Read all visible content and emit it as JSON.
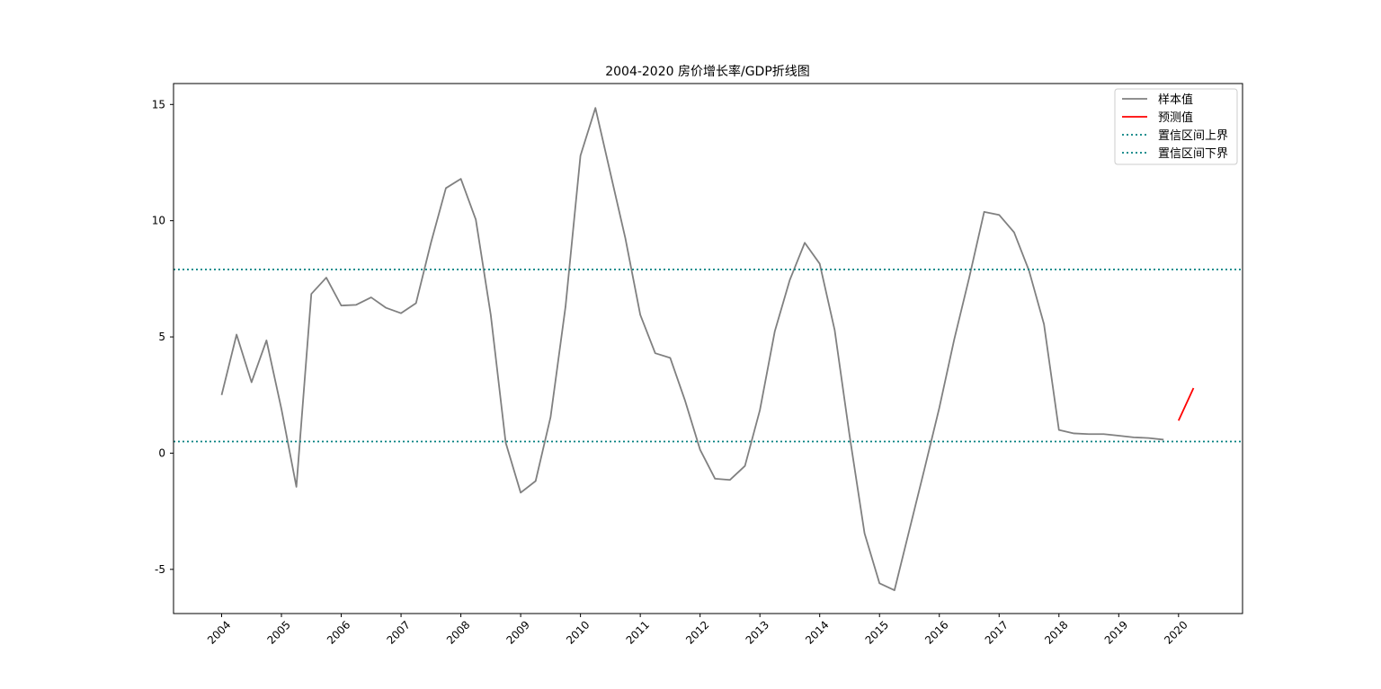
{
  "chart_data": {
    "type": "line",
    "title": "2004-2020 房价增长率/GDP折线图",
    "xlabel": "",
    "ylabel": "",
    "ylim": [
      -6.9,
      15.9
    ],
    "yticks": [
      -5,
      0,
      5,
      10,
      15
    ],
    "xtick_labels": [
      "2004",
      "2005",
      "2006",
      "2007",
      "2008",
      "2009",
      "2010",
      "2011",
      "2012",
      "2013",
      "2014",
      "2015",
      "2016",
      "2017",
      "2018",
      "2019",
      "2020"
    ],
    "legend_position": "top-right",
    "grid": false,
    "series": [
      {
        "name": "样本值",
        "color": "#808080",
        "style": "solid",
        "x": [
          "2004Q1",
          "2004Q2",
          "2004Q3",
          "2004Q4",
          "2005Q1",
          "2005Q2",
          "2005Q3",
          "2005Q4",
          "2006Q1",
          "2006Q2",
          "2006Q3",
          "2006Q4",
          "2007Q1",
          "2007Q2",
          "2007Q3",
          "2007Q4",
          "2008Q1",
          "2008Q2",
          "2008Q3",
          "2008Q4",
          "2009Q1",
          "2009Q2",
          "2009Q3",
          "2009Q4",
          "2010Q1",
          "2010Q2",
          "2010Q3",
          "2010Q4",
          "2011Q1",
          "2011Q2",
          "2011Q3",
          "2011Q4",
          "2012Q1",
          "2012Q2",
          "2012Q3",
          "2012Q4",
          "2013Q1",
          "2013Q2",
          "2013Q3",
          "2013Q4",
          "2014Q1",
          "2014Q2",
          "2014Q3",
          "2014Q4",
          "2015Q1",
          "2015Q2",
          "2015Q3",
          "2015Q4",
          "2016Q1",
          "2016Q2",
          "2016Q3",
          "2016Q4",
          "2017Q1",
          "2017Q2",
          "2017Q3",
          "2017Q4",
          "2018Q1",
          "2018Q2",
          "2018Q3",
          "2018Q4",
          "2019Q1",
          "2019Q2",
          "2019Q3",
          "2019Q4"
        ],
        "values": [
          2.5,
          5.1,
          3.05,
          4.85,
          1.9,
          -1.45,
          6.85,
          7.55,
          6.35,
          6.38,
          6.7,
          6.25,
          6.02,
          6.45,
          9.05,
          11.4,
          11.8,
          10.05,
          5.95,
          0.45,
          -1.7,
          -1.2,
          1.55,
          6.3,
          12.8,
          14.85,
          12.05,
          9.25,
          5.95,
          4.3,
          4.1,
          2.25,
          0.15,
          -1.1,
          -1.15,
          -0.55,
          1.85,
          5.25,
          7.45,
          9.05,
          8.15,
          5.3,
          0.75,
          -3.45,
          -5.6,
          -5.9,
          -3.3,
          -0.7,
          1.95,
          4.9,
          7.55,
          10.38,
          10.25,
          9.5,
          7.85,
          5.55,
          1.0,
          0.85,
          0.82,
          0.82,
          0.75,
          0.68,
          0.65,
          0.58
        ]
      },
      {
        "name": "预测值",
        "color": "#ff0000",
        "style": "solid",
        "x": [
          "2020Q1",
          "2020Q2"
        ],
        "values": [
          1.4,
          2.8
        ]
      },
      {
        "name": "置信区间上界",
        "color": "#008080",
        "style": "dotted",
        "y": 7.9
      },
      {
        "name": "置信区间下界",
        "color": "#008080",
        "style": "dotted",
        "y": 0.5
      }
    ]
  }
}
